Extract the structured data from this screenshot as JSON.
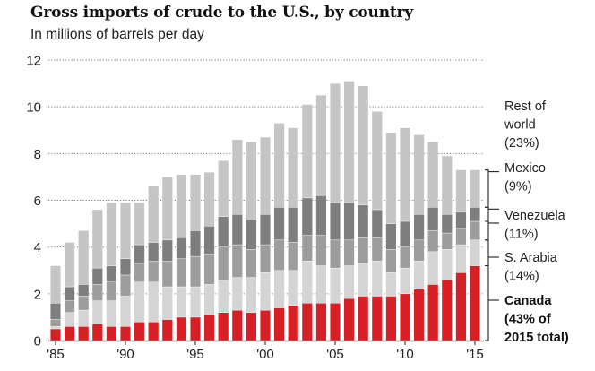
{
  "title": "Gross imports of crude to the U.S., by country",
  "subtitle": "In millions of barrels per day",
  "colors": {
    "canada": "#d71f26",
    "saudi_arabia": "#d4d4d4",
    "venezuela": "#9d9d9d",
    "mexico": "#7e7e7e",
    "rest_of_world": "#c5c5c5"
  },
  "chart_data": {
    "type": "bar",
    "stacked": true,
    "categories": [
      1985,
      1986,
      1987,
      1988,
      1989,
      1990,
      1991,
      1992,
      1993,
      1994,
      1995,
      1996,
      1997,
      1998,
      1999,
      2000,
      2001,
      2002,
      2003,
      2004,
      2005,
      2006,
      2007,
      2008,
      2009,
      2010,
      2011,
      2012,
      2013,
      2014,
      2015
    ],
    "x_tick_labels": [
      "'85",
      "'90",
      "'95",
      "'00",
      "'05",
      "'10",
      "'15"
    ],
    "x_tick_years": [
      1985,
      1990,
      1995,
      2000,
      2005,
      2010,
      2015
    ],
    "y_ticks": [
      0,
      2,
      4,
      6,
      8,
      10,
      12
    ],
    "ylim": [
      0,
      12
    ],
    "gridlines": "dotted",
    "legend_position": "right",
    "series": [
      {
        "key": "canada",
        "name": "Canada",
        "values": [
          0.5,
          0.6,
          0.6,
          0.7,
          0.6,
          0.6,
          0.8,
          0.8,
          0.9,
          1.0,
          1.0,
          1.1,
          1.2,
          1.3,
          1.2,
          1.3,
          1.4,
          1.5,
          1.6,
          1.6,
          1.6,
          1.8,
          1.9,
          1.9,
          1.9,
          2.0,
          2.2,
          2.4,
          2.6,
          2.9,
          3.2
        ]
      },
      {
        "key": "saudi_arabia",
        "name": "S. Arabia",
        "values": [
          0.1,
          0.6,
          0.7,
          1.0,
          1.1,
          1.3,
          1.7,
          1.7,
          1.4,
          1.3,
          1.3,
          1.3,
          1.4,
          1.4,
          1.5,
          1.6,
          1.6,
          1.5,
          1.8,
          1.6,
          1.5,
          1.4,
          1.4,
          1.5,
          1.0,
          1.1,
          1.2,
          1.4,
          1.3,
          1.2,
          1.1
        ]
      },
      {
        "key": "venezuela",
        "name": "Venezuela",
        "values": [
          0.3,
          0.5,
          0.6,
          0.7,
          0.8,
          0.9,
          0.8,
          0.9,
          1.1,
          1.2,
          1.3,
          1.3,
          1.4,
          1.4,
          1.2,
          1.2,
          1.3,
          1.2,
          1.1,
          1.3,
          1.2,
          1.1,
          1.1,
          1.0,
          1.0,
          0.9,
          0.9,
          0.9,
          0.7,
          0.7,
          0.8
        ]
      },
      {
        "key": "mexico",
        "name": "Mexico",
        "values": [
          0.7,
          0.6,
          0.5,
          0.7,
          0.7,
          0.7,
          0.8,
          0.8,
          0.9,
          0.9,
          1.1,
          1.2,
          1.3,
          1.3,
          1.3,
          1.3,
          1.4,
          1.5,
          1.6,
          1.7,
          1.6,
          1.6,
          1.4,
          1.2,
          1.1,
          1.1,
          1.1,
          1.0,
          0.8,
          0.7,
          0.6
        ]
      },
      {
        "key": "rest_of_world",
        "name": "Rest of world",
        "values": [
          1.6,
          1.9,
          2.3,
          2.5,
          2.7,
          2.4,
          1.8,
          2.4,
          2.7,
          2.7,
          2.4,
          2.3,
          2.4,
          3.2,
          3.3,
          3.3,
          3.6,
          3.4,
          4.0,
          4.3,
          5.1,
          5.2,
          5.1,
          4.2,
          3.9,
          4.0,
          3.4,
          2.8,
          2.5,
          1.8,
          1.6
        ]
      }
    ],
    "legend": [
      {
        "key": "rest_of_world",
        "lines": [
          "Rest of",
          "world",
          "(23%)"
        ],
        "bold": false
      },
      {
        "key": "mexico",
        "lines": [
          "Mexico",
          "(9%)"
        ],
        "bold": false
      },
      {
        "key": "venezuela",
        "lines": [
          "Venezuela",
          "(11%)"
        ],
        "bold": false
      },
      {
        "key": "saudi_arabia",
        "lines": [
          "S. Arabia",
          "(14%)"
        ],
        "bold": false
      },
      {
        "key": "canada",
        "lines": [
          "Canada",
          "(43% of",
          "2015 total)"
        ],
        "bold": true
      }
    ]
  }
}
